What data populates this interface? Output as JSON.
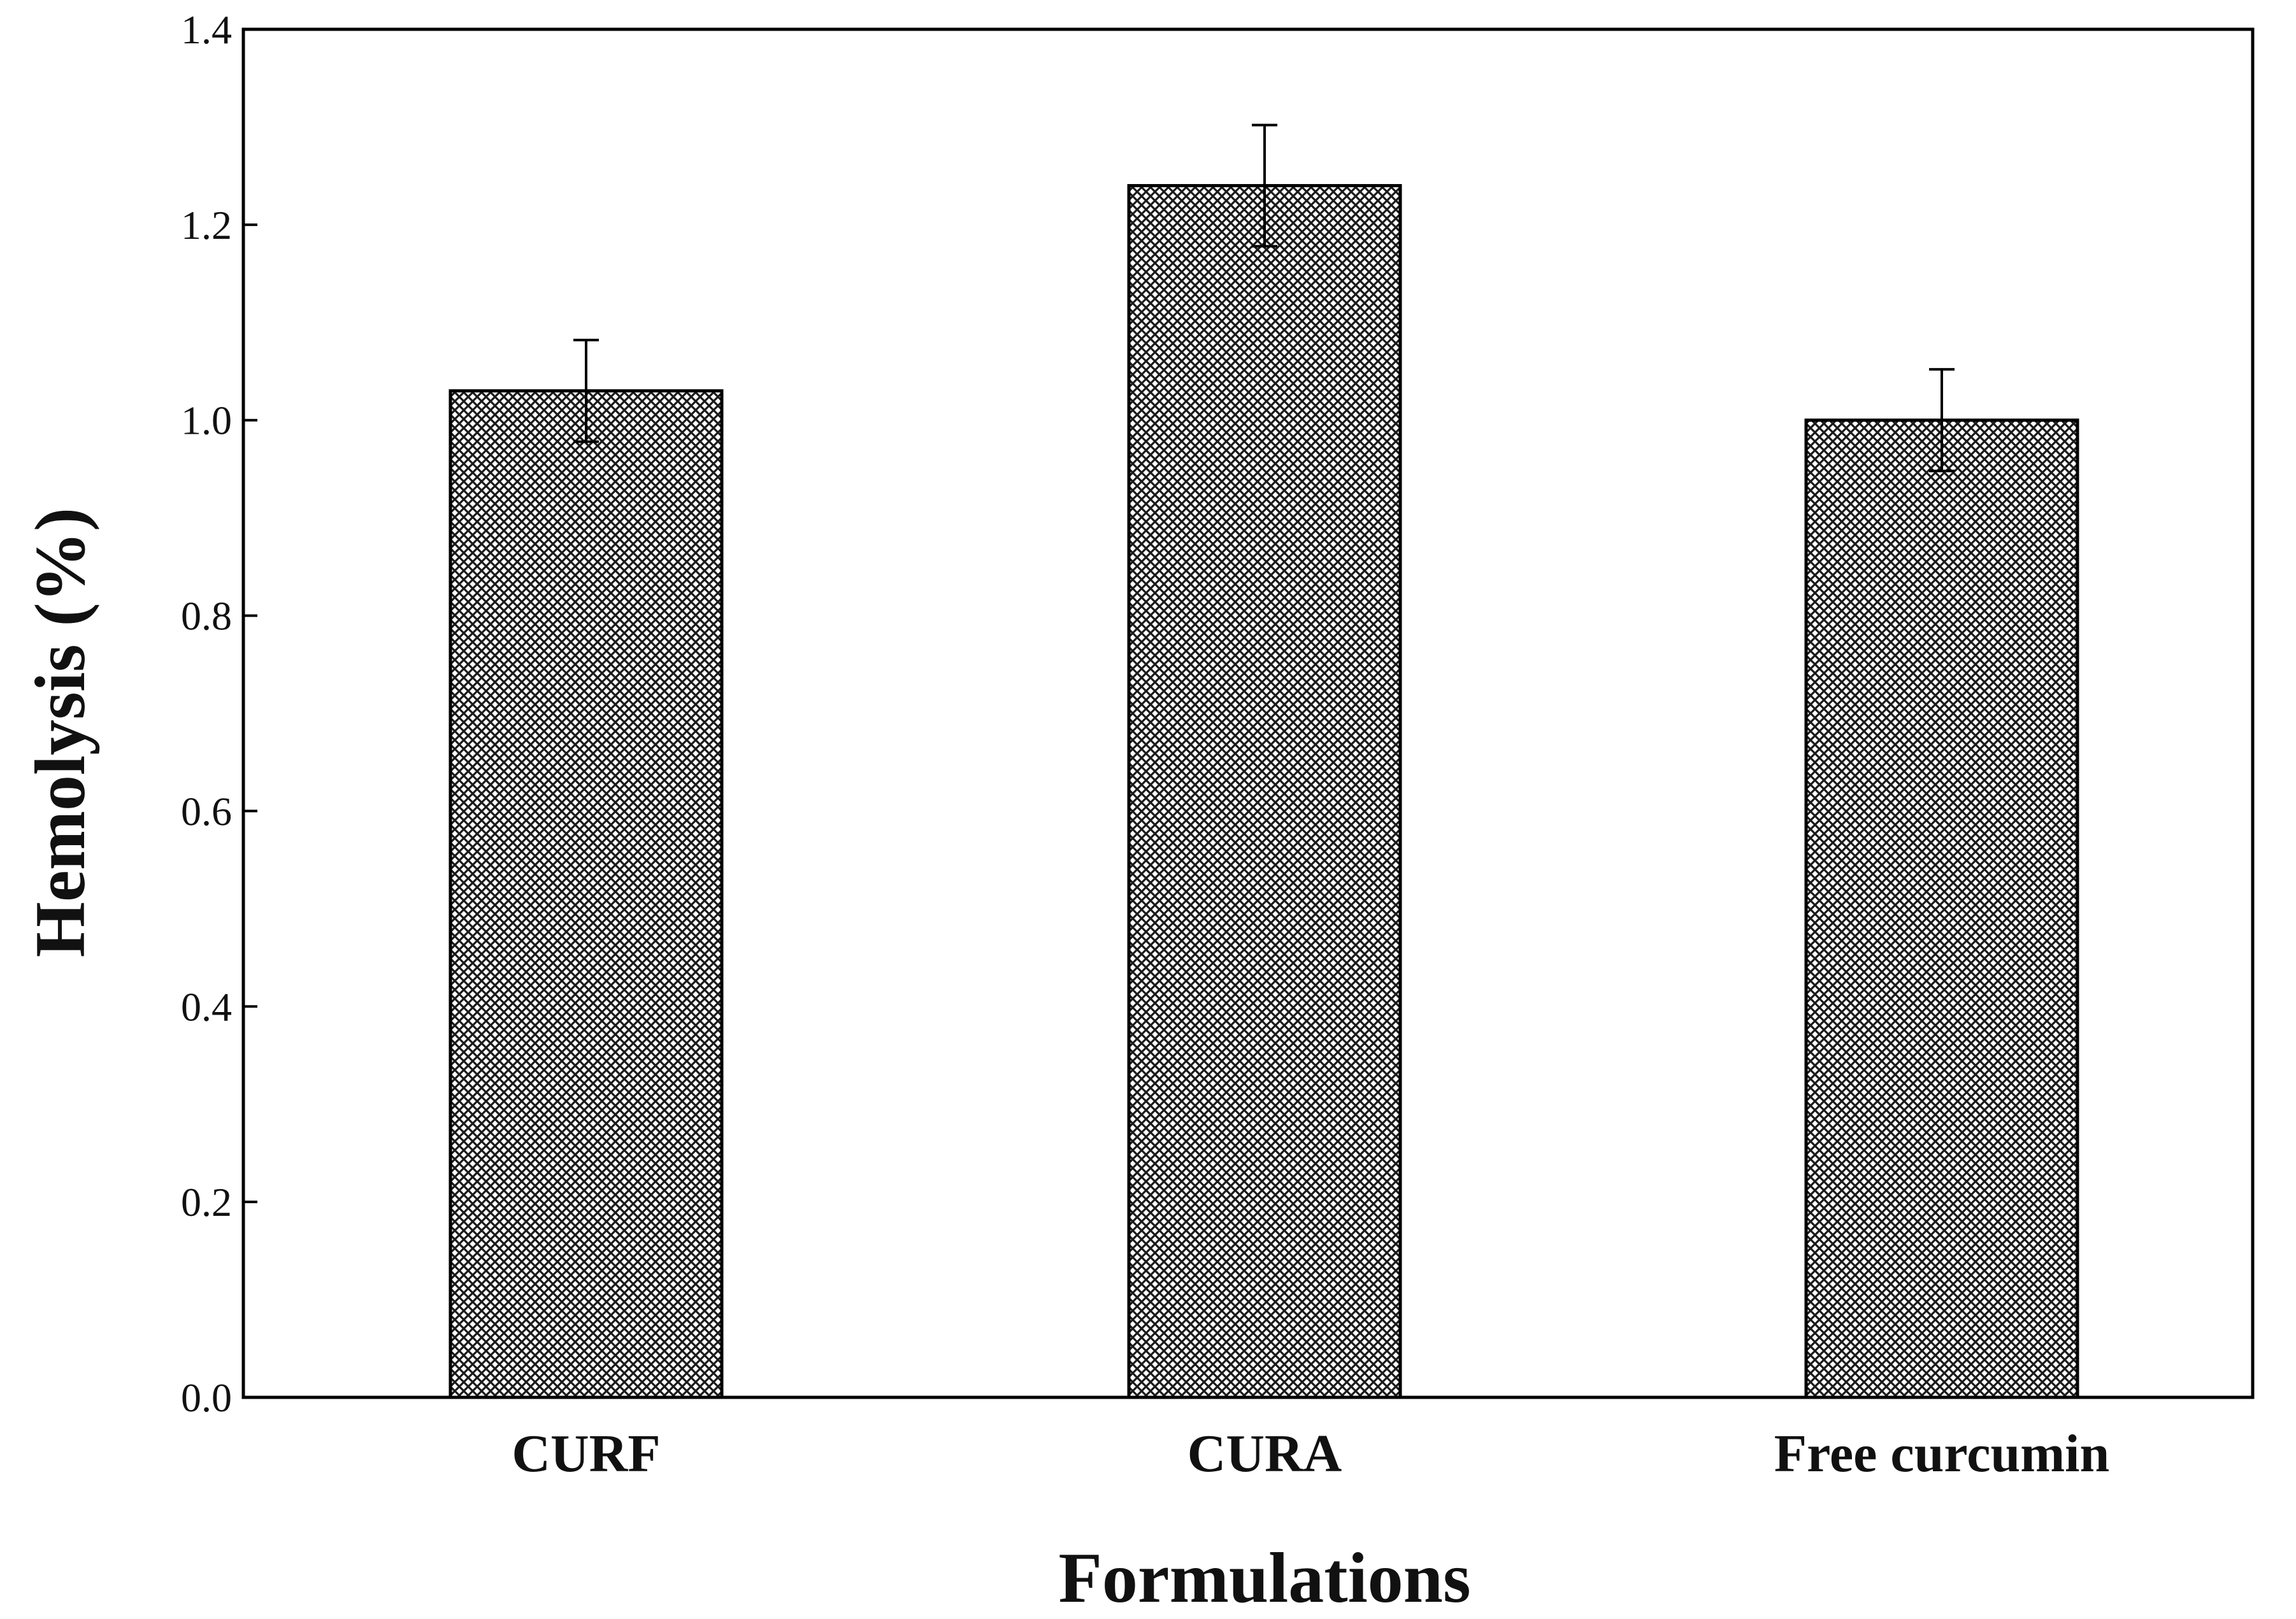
{
  "chart_data": {
    "type": "bar",
    "categories": [
      "CURF",
      "CURA",
      "Free curcumin"
    ],
    "values": [
      1.03,
      1.24,
      1.0
    ],
    "errors": [
      0.052,
      0.062,
      0.052
    ],
    "xlabel": "Formulations",
    "ylabel": "Hemolysis (%)",
    "ylim": [
      0.0,
      1.4
    ],
    "yticks": [
      "0.0",
      "0.2",
      "0.4",
      "0.6",
      "0.8",
      "1.0",
      "1.2",
      "1.4"
    ],
    "grid": false,
    "colors": {
      "bar_fill": "#ffffff",
      "bar_hatch": "#222222",
      "axis": "#000000"
    }
  }
}
